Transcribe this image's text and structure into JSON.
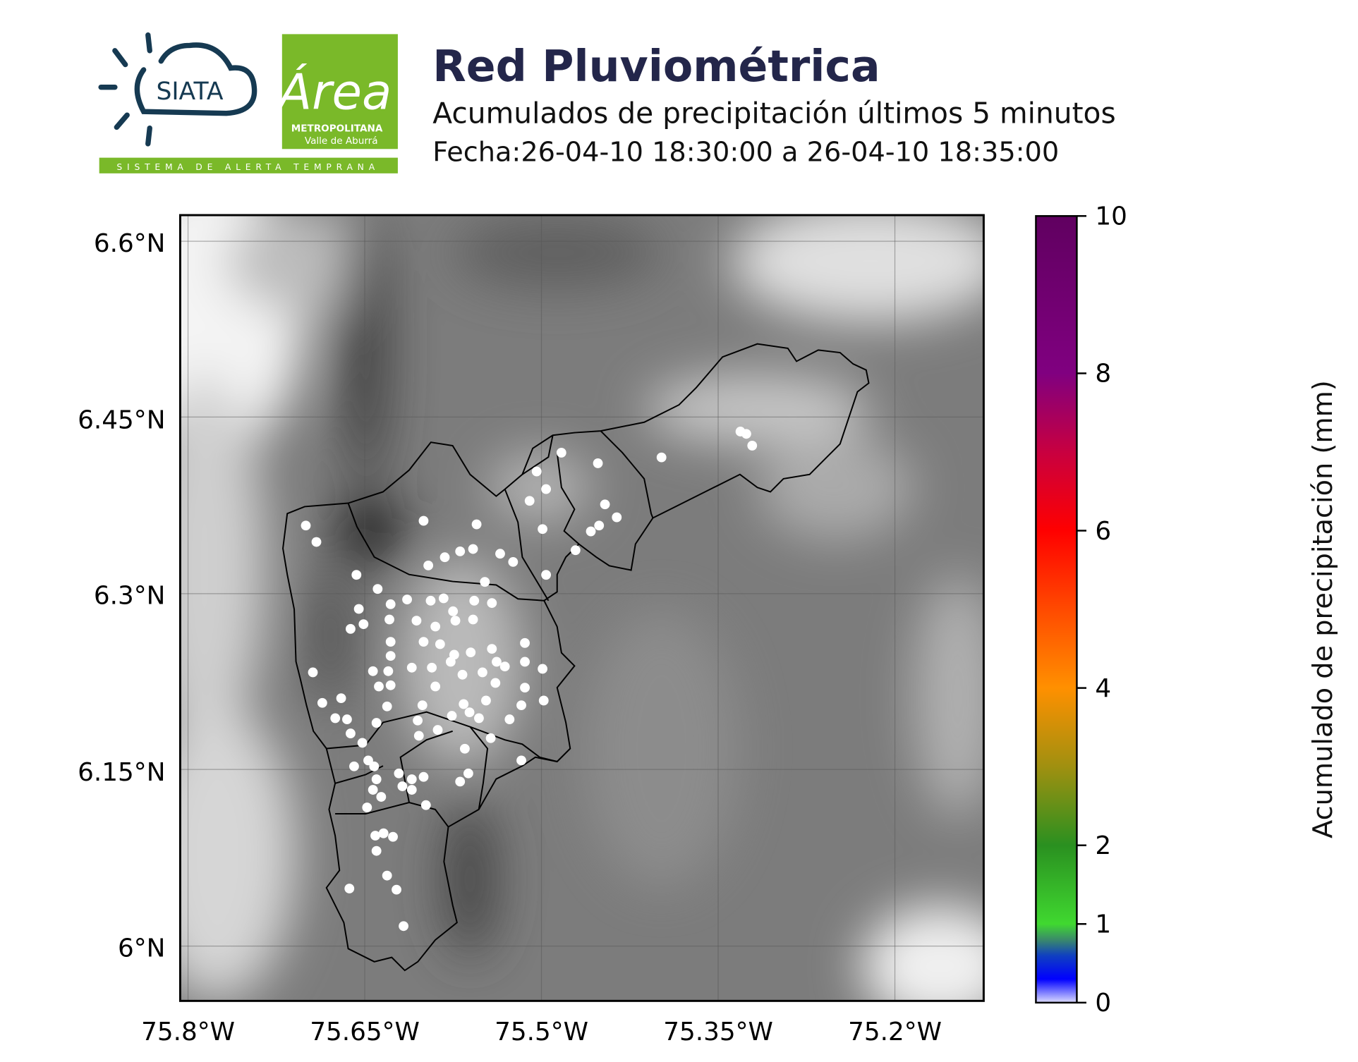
{
  "header": {
    "title": "Red Pluviométrica",
    "subtitle": "Acumulados de precipitación últimos 5 minutos",
    "date_range": "Fecha:26-04-10 18:30:00 a 26-04-10 18:35:00"
  },
  "logos": {
    "siata": "SIATA",
    "area_metropolitana_script": "Área",
    "area_metropolitana_line1": "METROPOLITANA",
    "area_metropolitana_line2": "Valle de Aburrá",
    "banner": "SISTEMA DE ALERTA TEMPRANA",
    "colors": {
      "siata_blue": "#163a52",
      "area_green": "#7ab929"
    }
  },
  "chart_data": {
    "type": "scatter",
    "basemap": "grayscale elevation (DEM) with municipal boundaries",
    "x_ticks": [
      "75.8°W",
      "75.65°W",
      "75.5°W",
      "75.35°W",
      "75.2°W"
    ],
    "y_ticks": [
      "6.6°N",
      "6.45°N",
      "6.3°N",
      "6.15°N",
      "6°N"
    ],
    "x_tick_values": [
      -75.8,
      -75.65,
      -75.5,
      -75.35,
      -75.2
    ],
    "y_tick_values": [
      6.6,
      6.45,
      6.3,
      6.15,
      6.0
    ],
    "xlim": [
      -75.807,
      -75.124
    ],
    "ylim": [
      5.955,
      6.623
    ],
    "grid": true,
    "marker_color": "#ffffff",
    "stations_value_mm": 0,
    "stations": [
      [
        -75.7,
        6.358
      ],
      [
        -75.691,
        6.344
      ],
      [
        -75.657,
        6.316
      ],
      [
        -75.639,
        6.304
      ],
      [
        -75.655,
        6.287
      ],
      [
        -75.651,
        6.274
      ],
      [
        -75.662,
        6.27
      ],
      [
        -75.6,
        6.362
      ],
      [
        -75.555,
        6.359
      ],
      [
        -75.596,
        6.324
      ],
      [
        -75.582,
        6.331
      ],
      [
        -75.569,
        6.336
      ],
      [
        -75.558,
        6.338
      ],
      [
        -75.548,
        6.31
      ],
      [
        -75.628,
        6.291
      ],
      [
        -75.614,
        6.295
      ],
      [
        -75.594,
        6.294
      ],
      [
        -75.583,
        6.296
      ],
      [
        -75.575,
        6.285
      ],
      [
        -75.557,
        6.294
      ],
      [
        -75.542,
        6.292
      ],
      [
        -75.629,
        6.278
      ],
      [
        -75.606,
        6.277
      ],
      [
        -75.59,
        6.272
      ],
      [
        -75.573,
        6.277
      ],
      [
        -75.558,
        6.278
      ],
      [
        -75.628,
        6.259
      ],
      [
        -75.6,
        6.259
      ],
      [
        -75.586,
        6.257
      ],
      [
        -75.574,
        6.248
      ],
      [
        -75.56,
        6.25
      ],
      [
        -75.542,
        6.253
      ],
      [
        -75.538,
        6.242
      ],
      [
        -75.531,
        6.238
      ],
      [
        -75.628,
        6.247
      ],
      [
        -75.643,
        6.234
      ],
      [
        -75.63,
        6.234
      ],
      [
        -75.638,
        6.221
      ],
      [
        -75.628,
        6.222
      ],
      [
        -75.61,
        6.237
      ],
      [
        -75.593,
        6.237
      ],
      [
        -75.577,
        6.242
      ],
      [
        -75.567,
        6.231
      ],
      [
        -75.55,
        6.233
      ],
      [
        -75.59,
        6.221
      ],
      [
        -75.601,
        6.205
      ],
      [
        -75.566,
        6.206
      ],
      [
        -75.547,
        6.209
      ],
      [
        -75.561,
        6.199
      ],
      [
        -75.553,
        6.194
      ],
      [
        -75.576,
        6.196
      ],
      [
        -75.539,
        6.224
      ],
      [
        -75.514,
        6.258
      ],
      [
        -75.514,
        6.242
      ],
      [
        -75.499,
        6.236
      ],
      [
        -75.514,
        6.22
      ],
      [
        -75.498,
        6.209
      ],
      [
        -75.517,
        6.205
      ],
      [
        -75.527,
        6.193
      ],
      [
        -75.543,
        6.177
      ],
      [
        -75.694,
        6.233
      ],
      [
        -75.686,
        6.207
      ],
      [
        -75.67,
        6.211
      ],
      [
        -75.675,
        6.194
      ],
      [
        -75.665,
        6.193
      ],
      [
        -75.662,
        6.181
      ],
      [
        -75.652,
        6.173
      ],
      [
        -75.64,
        6.19
      ],
      [
        -75.631,
        6.204
      ],
      [
        -75.659,
        6.153
      ],
      [
        -75.647,
        6.158
      ],
      [
        -75.642,
        6.153
      ],
      [
        -75.64,
        6.142
      ],
      [
        -75.643,
        6.133
      ],
      [
        -75.648,
        6.118
      ],
      [
        -75.636,
        6.127
      ],
      [
        -75.621,
        6.147
      ],
      [
        -75.618,
        6.136
      ],
      [
        -75.61,
        6.142
      ],
      [
        -75.6,
        6.144
      ],
      [
        -75.598,
        6.12
      ],
      [
        -75.61,
        6.133
      ],
      [
        -75.605,
        6.192
      ],
      [
        -75.604,
        6.179
      ],
      [
        -75.588,
        6.184
      ],
      [
        -75.565,
        6.168
      ],
      [
        -75.562,
        6.147
      ],
      [
        -75.569,
        6.14
      ],
      [
        -75.517,
        6.158
      ],
      [
        -75.641,
        6.094
      ],
      [
        -75.634,
        6.096
      ],
      [
        -75.626,
        6.093
      ],
      [
        -75.64,
        6.081
      ],
      [
        -75.631,
        6.06
      ],
      [
        -75.623,
        6.048
      ],
      [
        -75.663,
        6.049
      ],
      [
        -75.617,
        6.017
      ],
      [
        -75.535,
        6.334
      ],
      [
        -75.524,
        6.327
      ],
      [
        -75.496,
        6.316
      ],
      [
        -75.499,
        6.355
      ],
      [
        -75.496,
        6.389
      ],
      [
        -75.504,
        6.404
      ],
      [
        -75.51,
        6.379
      ],
      [
        -75.483,
        6.42
      ],
      [
        -75.471,
        6.337
      ],
      [
        -75.452,
        6.411
      ],
      [
        -75.446,
        6.376
      ],
      [
        -75.436,
        6.365
      ],
      [
        -75.451,
        6.358
      ],
      [
        -75.458,
        6.353
      ],
      [
        -75.398,
        6.416
      ],
      [
        -75.331,
        6.438
      ],
      [
        -75.326,
        6.436
      ],
      [
        -75.321,
        6.426
      ]
    ],
    "colorbar": {
      "label": "Acumulado de precipitación (mm)",
      "range": [
        0,
        10
      ],
      "ticks": [
        "0",
        "1",
        "2",
        "4",
        "6",
        "8",
        "10"
      ],
      "tick_values": [
        0,
        1,
        2,
        4,
        6,
        8,
        10
      ],
      "stops": [
        {
          "v": 0,
          "c": "#dcdcff"
        },
        {
          "v": 0.3,
          "c": "#0000ff"
        },
        {
          "v": 0.6,
          "c": "#1040c0"
        },
        {
          "v": 0.8,
          "c": "#3a8a6a"
        },
        {
          "v": 1,
          "c": "#40d830"
        },
        {
          "v": 2,
          "c": "#2a9020"
        },
        {
          "v": 3,
          "c": "#a09010"
        },
        {
          "v": 4,
          "c": "#ff9000"
        },
        {
          "v": 5,
          "c": "#ff4a00"
        },
        {
          "v": 6,
          "c": "#ff0000"
        },
        {
          "v": 7,
          "c": "#c80040"
        },
        {
          "v": 8,
          "c": "#800080"
        },
        {
          "v": 10,
          "c": "#600060"
        }
      ]
    }
  }
}
